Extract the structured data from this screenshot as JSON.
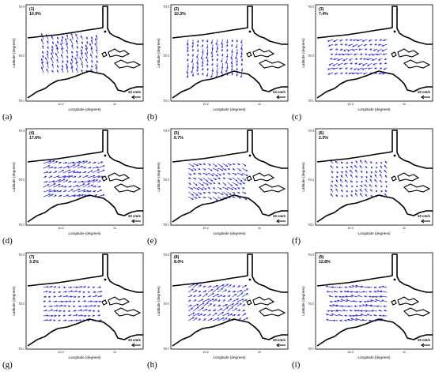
{
  "figure": {
    "axis_x_label": "Longitude (degrees)",
    "axis_y_label": "Latitude (degrees)",
    "x_ticks": [
      "10.2",
      "11"
    ],
    "y_ticks": [
      "53.3",
      "53.2",
      "53.1"
    ],
    "scale_label": "10 cm/s",
    "vector_color": "#1f1fd6",
    "coast_color": "#000000"
  },
  "chart_data": [
    {
      "type": "vector-field",
      "panel_letter": "(a)",
      "mode_label": "(1)",
      "percent": "10.9%",
      "angle_deg": 110,
      "magnitude": 0.8,
      "coverage": 0.5
    },
    {
      "type": "vector-field",
      "panel_letter": "(b)",
      "mode_label": "(2)",
      "percent": "10.3%",
      "angle_deg": 260,
      "magnitude": 0.7,
      "coverage": 0.5
    },
    {
      "type": "vector-field",
      "panel_letter": "(c)",
      "mode_label": "(3)",
      "percent": "7.4%",
      "angle_deg": 200,
      "magnitude": 0.7,
      "coverage": 0.5
    },
    {
      "type": "vector-field",
      "panel_letter": "(d)",
      "mode_label": "(4)",
      "percent": "17.6%",
      "angle_deg": 20,
      "magnitude": 1.0,
      "coverage": 0.5
    },
    {
      "type": "vector-field",
      "panel_letter": "(e)",
      "mode_label": "(5)",
      "percent": "6.7%",
      "angle_deg": 330,
      "magnitude": 0.8,
      "coverage": 0.5
    },
    {
      "type": "vector-field",
      "panel_letter": "(f)",
      "mode_label": "(6)",
      "percent": "2.3%",
      "angle_deg": 130,
      "magnitude": 0.5,
      "coverage": 0.4
    },
    {
      "type": "vector-field",
      "panel_letter": "(g)",
      "mode_label": "(7)",
      "percent": "3.2%",
      "angle_deg": 10,
      "magnitude": 0.6,
      "coverage": 0.5
    },
    {
      "type": "vector-field",
      "panel_letter": "(h)",
      "mode_label": "(8)",
      "percent": "8.0%",
      "angle_deg": 30,
      "magnitude": 0.9,
      "coverage": 0.5
    },
    {
      "type": "vector-field",
      "panel_letter": "(i)",
      "mode_label": "(9)",
      "percent": "12.8%",
      "angle_deg": 170,
      "magnitude": 0.9,
      "coverage": 0.5
    }
  ]
}
